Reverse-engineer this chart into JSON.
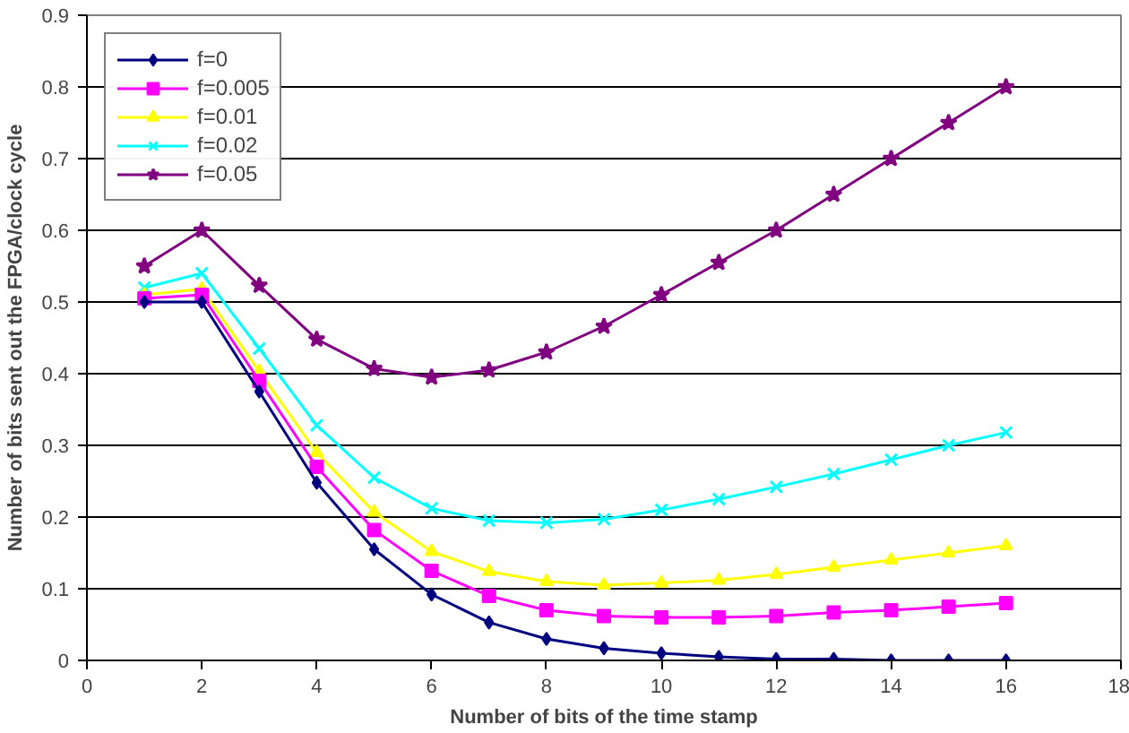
{
  "chart_data": {
    "type": "line",
    "xlabel": "Number of bits of the time stamp",
    "ylabel": "Number of bits sent out the FPGA/clock cycle",
    "x": [
      1,
      2,
      3,
      4,
      5,
      6,
      7,
      8,
      9,
      10,
      11,
      12,
      13,
      14,
      15,
      16
    ],
    "xlim": [
      0,
      18
    ],
    "xticks": [
      0,
      2,
      4,
      6,
      8,
      10,
      12,
      14,
      16,
      18
    ],
    "ylim": [
      0,
      0.9
    ],
    "yticks": [
      0,
      0.1,
      0.2,
      0.3,
      0.4,
      0.5,
      0.6,
      0.7,
      0.8,
      0.9
    ],
    "grid": "y",
    "legend": "top left",
    "line_style": "solid",
    "series": [
      {
        "name": "f=0",
        "color": "#000080",
        "marker": "diamond",
        "values": [
          0.5,
          0.5,
          0.375,
          0.248,
          0.155,
          0.092,
          0.053,
          0.03,
          0.017,
          0.01,
          0.005,
          0.002,
          0.002,
          0,
          0,
          0
        ]
      },
      {
        "name": "f=0.005",
        "color": "#ff00ff",
        "marker": "square",
        "values": [
          0.505,
          0.51,
          0.39,
          0.27,
          0.182,
          0.125,
          0.09,
          0.07,
          0.062,
          0.06,
          0.06,
          0.062,
          0.067,
          0.07,
          0.075,
          0.08
        ]
      },
      {
        "name": "f=0.01",
        "color": "#ffff00",
        "marker": "triangle",
        "values": [
          0.51,
          0.518,
          0.403,
          0.29,
          0.207,
          0.152,
          0.124,
          0.11,
          0.105,
          0.108,
          0.112,
          0.12,
          0.13,
          0.14,
          0.15,
          0.16
        ]
      },
      {
        "name": "f=0.02",
        "color": "#00ffff",
        "marker": "cross",
        "values": [
          0.52,
          0.54,
          0.435,
          0.328,
          0.255,
          0.212,
          0.195,
          0.192,
          0.197,
          0.21,
          0.225,
          0.242,
          0.26,
          0.28,
          0.3,
          0.318
        ]
      },
      {
        "name": "f=0.05",
        "color": "#800080",
        "marker": "star",
        "values": [
          0.55,
          0.6,
          0.523,
          0.448,
          0.407,
          0.395,
          0.405,
          0.43,
          0.466,
          0.51,
          0.555,
          0.6,
          0.65,
          0.7,
          0.75,
          0.8
        ]
      }
    ]
  }
}
